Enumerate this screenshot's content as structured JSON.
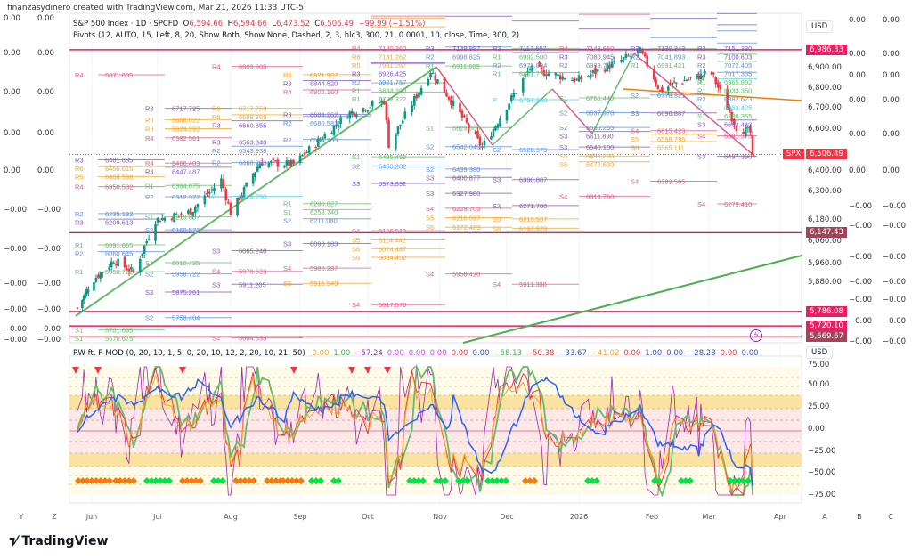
{
  "header": {
    "credit": "finanzasydinero created with TradingView.com, Mar 21, 2026 11:33 UTC-5"
  },
  "legend": {
    "symbol": "S&P 500 Index · 1D · SPCFD",
    "o_label": "O",
    "open": "6,594.66",
    "h_label": "H",
    "high": "6,594.66",
    "l_label": "L",
    "low": "6,473.52",
    "c_label": "C",
    "close": "6,506.49",
    "change": "−99.99 (−1.51%)",
    "pivots": "Pivots (12, AUTO, 15, Left, 8, 20, Show Both, Show None, Dashed, 2, 3, hlc3, 300, 21, 0.0001, 10, close, Time, 300, 2)"
  },
  "oscillator": {
    "title": "RW ft. F-MOD (0, 20, 10, 1, 5, 0, 20, 10, 12, 2, 20, 10, 21, 50)",
    "values": [
      {
        "v": "0.00",
        "color": "#f5a623"
      },
      {
        "v": "1.00",
        "color": "#4caf50"
      },
      {
        "v": "−57.24",
        "color": "#9c27b0"
      },
      {
        "v": "0.00",
        "color": "#e040fb"
      },
      {
        "v": "0.00",
        "color": "#e040fb"
      },
      {
        "v": "0.00",
        "color": "#e040fb"
      },
      {
        "v": "0.00",
        "color": "#f23645"
      },
      {
        "v": "0.00",
        "color": "#3f51b5"
      },
      {
        "v": "−58.13",
        "color": "#4caf50"
      },
      {
        "v": "−50.38",
        "color": "#f23645"
      },
      {
        "v": "−33.67",
        "color": "#3f51b5"
      },
      {
        "v": "−41.02",
        "color": "#f5a623"
      },
      {
        "v": "0.00",
        "color": "#f23645"
      },
      {
        "v": "1.00",
        "color": "#3f51b5"
      },
      {
        "v": "0.00",
        "color": "#3f51b5"
      },
      {
        "v": "−28.28",
        "color": "#3f51b5"
      },
      {
        "v": "0.00",
        "color": "#f23645"
      },
      {
        "v": "0.00",
        "color": "#3f51b5"
      }
    ],
    "axis": [
      "75.00",
      "50.00",
      "25.00",
      "0.00",
      "−25.00",
      "−50.00",
      "−75.00"
    ],
    "currency": "USD"
  },
  "price_axis": {
    "currency": "USD",
    "ticks": [
      "6,900.00",
      "6,800.00",
      "6,700.00",
      "6,600.00",
      "6,400.00",
      "6,300.00",
      "6,180.00",
      "6,060.00",
      "5,960.00",
      "5,880.00"
    ],
    "tags": [
      {
        "text": "6,986.33",
        "value": 6986.33,
        "color": "#e91e63"
      },
      {
        "text": "6,147.43",
        "value": 6147.43,
        "color": "#a0455e"
      },
      {
        "text": "5,786.08",
        "value": 5786.08,
        "color": "#e91e63"
      },
      {
        "text": "5,720.10",
        "value": 5720.1,
        "color": "#e91e63"
      },
      {
        "text": "5,669.67",
        "value": 5669.67,
        "color": "#a0455e"
      }
    ],
    "last": {
      "symbol": "SPX",
      "text": "6,506.49",
      "value": 6506.49,
      "color": "#f23645"
    }
  },
  "left_scale": {
    "col1": [
      "0.00",
      "0.00",
      "0.00",
      "0.00",
      "0.00",
      "−0.00",
      "−0.00",
      "−0.00",
      "−0.00",
      "−0.00",
      "−0.00"
    ],
    "col2": [
      "0.00",
      "0.00",
      "0.00",
      "0.00",
      "0.00",
      "−0.00",
      "−0.00",
      "−0.00",
      "−0.00",
      "−0.00",
      "−0.00"
    ]
  },
  "right_scale": {
    "col1": [
      "0.00",
      "0.00",
      "0.00",
      "0.00",
      "0.00",
      "0.00",
      "−0.00",
      "−0.00",
      "−0.00",
      "−0.00",
      "−0.00",
      "−0.00",
      "−0.00"
    ],
    "col2": [
      "0.00",
      "0.00",
      "0.00",
      "0.00",
      "0.00",
      "0.00",
      "−0.00",
      "−0.00",
      "−0.00",
      "−0.00",
      "−0.00",
      "−0.00",
      "−0.00"
    ]
  },
  "time_axis": [
    "Y",
    "Z",
    "Jun",
    "Jul",
    "Aug",
    "Sep",
    "Oct",
    "Nov",
    "Dec",
    "2026",
    "Feb",
    "Mar",
    "Apr",
    "A",
    "B",
    "C"
  ],
  "brand": "TradingView",
  "chart_data": {
    "type": "candlestick",
    "title": "S&P 500 Index · 1D",
    "ylim": [
      5640,
      7160
    ],
    "xlim": [
      "2025-05-20",
      "2026-04-10"
    ],
    "close_keypoints": [
      [
        "2025-05-23",
        5802
      ],
      [
        "2025-06-02",
        5935
      ],
      [
        "2025-06-11",
        6022
      ],
      [
        "2025-06-20",
        5967
      ],
      [
        "2025-06-30",
        6205
      ],
      [
        "2025-07-15",
        6244
      ],
      [
        "2025-07-28",
        6390
      ],
      [
        "2025-08-01",
        6238
      ],
      [
        "2025-08-14",
        6468
      ],
      [
        "2025-08-29",
        6460
      ],
      [
        "2025-09-22",
        6693
      ],
      [
        "2025-10-08",
        6753
      ],
      [
        "2025-10-10",
        6552
      ],
      [
        "2025-10-28",
        6890
      ],
      [
        "2025-11-20",
        6538
      ],
      [
        "2025-12-11",
        6901
      ],
      [
        "2025-12-31",
        6845
      ],
      [
        "2026-01-27",
        6978
      ],
      [
        "2026-02-05",
        6798
      ],
      [
        "2026-02-12",
        6832
      ],
      [
        "2026-03-02",
        6881
      ],
      [
        "2026-03-13",
        6632
      ],
      [
        "2026-03-19",
        6606
      ],
      [
        "2026-03-20",
        6506
      ]
    ],
    "horizontal_levels": [
      6986.33,
      6147.43,
      5786.08,
      5720.1,
      5669.67
    ],
    "pivot_periods": [
      [
        [
          "R4",
          6871.605
        ],
        [
          "R3",
          6481.635
        ],
        [
          "R6",
          6450.615
        ],
        [
          "R5",
          6404.598
        ],
        [
          "R4",
          6358.582
        ],
        [
          "R2",
          6235.132
        ],
        [
          "R3",
          6209.613
        ],
        [
          "R1",
          6091.665
        ],
        [
          "R2",
          6060.645
        ],
        [
          "R1",
          5968.722
        ],
        [
          "S1",
          5701.695
        ],
        [
          "S1",
          5670.675
        ]
      ],
      [
        [
          "R3",
          6717.725
        ],
        [
          "R6",
          6666.022
        ],
        [
          "R5",
          6624.292
        ],
        [
          "R4",
          6582.561
        ],
        [
          "R4",
          6466.403
        ],
        [
          "R3",
          6447.487
        ],
        [
          "R1",
          6364.075
        ],
        [
          "R2",
          6312.372
        ],
        [
          "S1",
          6219.657
        ],
        [
          "S2",
          6160.573
        ],
        [
          "S1",
          6010.425
        ],
        [
          "S2",
          5958.722
        ],
        [
          "S3",
          5875.261
        ],
        [
          "S2",
          5758.404
        ]
      ],
      [
        [
          "R4",
          6909.905
        ],
        [
          "R6",
          6717.753
        ],
        [
          "R5",
          6688.366
        ],
        [
          "R3",
          6660.855
        ],
        [
          "R3",
          6563.84
        ],
        [
          "R2",
          6543.938
        ],
        [
          "R2",
          6468.783
        ],
        [
          "P",
          6314.79
        ],
        [
          "S3",
          6065.24
        ],
        [
          "S4",
          5970.623
        ],
        [
          "S3",
          5911.205
        ],
        [
          "S4",
          5664.655
        ]
      ],
      [
        [
          "R6",
          6871.907
        ],
        [
          "R3",
          6844.82
        ],
        [
          "R4",
          6802.16
        ],
        [
          "R3",
          6689.262
        ],
        [
          "R2",
          6680.583
        ],
        [
          "R2",
          6574.365
        ],
        [
          "R1",
          6280.827
        ],
        [
          "S1",
          6253.74
        ],
        [
          "S2",
          6211.08
        ],
        [
          "S3",
          6098.183
        ],
        [
          "S4",
          5985.287
        ],
        [
          "S6",
          5915.54
        ]
      ],
      [
        [
          "R4",
          7140.36
        ],
        [
          "R6",
          7131.262
        ],
        [
          "R5",
          7091.267
        ],
        [
          "R3",
          6926.425
        ],
        [
          "R2",
          6921.757
        ],
        [
          "R1",
          6834.39
        ],
        [
          "R1",
          6792.322
        ],
        [
          "S1",
          6495.45
        ],
        [
          "S2",
          6453.282
        ],
        [
          "S3",
          6373.392
        ],
        [
          "S4",
          6156.51
        ],
        [
          "S5",
          6114.442
        ],
        [
          "S6",
          6074.447
        ],
        [
          "S6",
          6034.452
        ],
        [
          "S4",
          5817.57
        ]
      ],
      [
        [
          "R3",
          7139.997
        ],
        [
          "R2",
          6998.825
        ],
        [
          "R1",
          6911.609
        ],
        [
          "S1",
          6629.36
        ],
        [
          "S2",
          6542.049
        ],
        [
          "S2",
          6439.38
        ],
        [
          "S3",
          6400.877
        ],
        [
          "S3",
          6327.98
        ],
        [
          "S4",
          6259.705
        ],
        [
          "S5",
          6216.097
        ],
        [
          "S6",
          6172.489
        ],
        [
          "S4",
          5958.42
        ]
      ],
      [
        [
          "R3",
          7117.607
        ],
        [
          "R1",
          6992.5
        ],
        [
          "R2",
          6973.834
        ],
        [
          "R1",
          6881.779
        ],
        [
          "P",
          6757.38
        ],
        [
          "S2",
          6528.379
        ],
        [
          "S3",
          6390.887
        ],
        [
          "S3",
          6271.7
        ],
        [
          "S5",
          6210.507
        ],
        [
          "S6",
          6167.979
        ],
        [
          "S4",
          5911.3
        ]
      ],
      [
        [
          "R4",
          7148.65
        ],
        [
          "R3",
          7080.945
        ],
        [
          "R2",
          6989.78
        ],
        [
          "S1",
          6765.44
        ],
        [
          "S2",
          6697.97
        ],
        [
          "S2",
          6630.265
        ],
        [
          "S3",
          6611.89
        ],
        [
          "S3",
          6540.1
        ],
        [
          "S5",
          6499.22
        ],
        [
          "S6",
          6472.63
        ],
        [
          "S4",
          6314.76
        ]
      ],
      [
        [
          "R3",
          7130.343
        ],
        [
          "R2",
          7041.893
        ],
        [
          "R1",
          6991.421
        ],
        [
          "S2",
          6778.321
        ],
        [
          "S3",
          6696.887
        ],
        [
          "S4",
          6615.423
        ],
        [
          "S5",
          6598.795
        ],
        [
          "S6",
          6565.111
        ],
        [
          "S4",
          6383.565
        ]
      ],
      [
        [
          "R3",
          7151.33
        ],
        [
          "R3",
          7100.603
        ],
        [
          "R2",
          7072.405
        ],
        [
          "R2",
          7017.335
        ],
        [
          "R1",
          6965.892
        ],
        [
          "R1",
          6933.35
        ],
        [
          "R2",
          6882.623
        ],
        [
          "P",
          6853.425
        ],
        [
          "S1",
          6788.355
        ],
        [
          "S3",
          6664.413
        ],
        [
          "S4",
          6591.375
        ],
        [
          "S3",
          6497.39
        ],
        [
          "S4",
          6279.41
        ]
      ]
    ],
    "oscillator_range": [
      -75,
      75
    ]
  }
}
